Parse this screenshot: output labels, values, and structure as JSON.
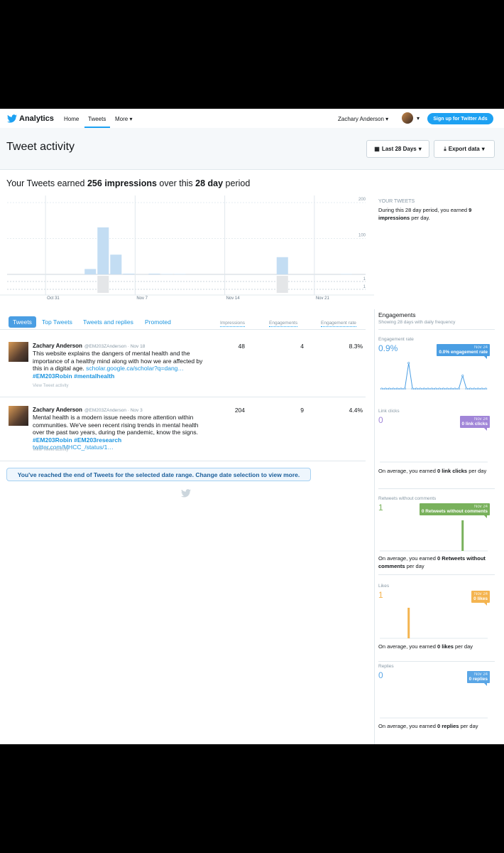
{
  "nav": {
    "brand": "Analytics",
    "links": [
      "Home",
      "Tweets",
      "More"
    ],
    "user": "Zachary Anderson",
    "ads_button": "Sign up for Twitter Ads"
  },
  "header": {
    "title": "Tweet activity",
    "date_button": "Last 28 Days",
    "export_button": "Export data"
  },
  "summary": [
    "Your Tweets earned ",
    "256 impressions",
    " over this ",
    "28 day",
    " period"
  ],
  "chart_data": {
    "type": "bar",
    "categories": [
      null,
      null,
      null,
      "Oct 31",
      null,
      null,
      null,
      null,
      null,
      null,
      "Nov 7",
      null,
      null,
      null,
      null,
      null,
      null,
      "Nov 14",
      null,
      null,
      null,
      null,
      null,
      null,
      "Nov 21",
      null,
      null,
      null
    ],
    "values": [
      0,
      0,
      0,
      0,
      0,
      0,
      15,
      131,
      55,
      2,
      0,
      2,
      1,
      1,
      0,
      0,
      0,
      0,
      0,
      0,
      0,
      48,
      0,
      0,
      0,
      0,
      1,
      0
    ],
    "color": "#c3ddf3",
    "ylim": [
      0,
      210
    ],
    "yticks": [
      100,
      200
    ],
    "grid": true,
    "engagement_values": [
      0,
      0,
      0,
      0,
      0,
      0,
      0,
      1,
      0,
      0,
      0,
      0,
      0,
      0,
      0,
      0,
      0,
      0,
      0,
      0,
      0,
      1,
      0,
      0,
      0,
      0,
      0,
      0
    ],
    "engagement_color": "#e4e6e8",
    "engagement_ylim": [
      0,
      1
    ],
    "engagement_ticks": [
      1,
      1
    ]
  },
  "tabs": [
    "Tweets",
    "Top Tweets",
    "Tweets and replies",
    "Promoted"
  ],
  "columns": [
    "Impressions",
    "Engagements",
    "Engagement rate"
  ],
  "tweets": [
    {
      "name": "Zachary Anderson",
      "meta": "@EM203ZAnderson · Nov 18",
      "text": "This website explains the dangers of mental health and the importance of a healthy mind along with how we are affected by this in a digital age.",
      "links": [
        "scholar.google.ca/scholar?q=dang…",
        "#EM203Robin",
        "#mentalhealth"
      ],
      "view": "View Tweet activity",
      "impressions": 48,
      "engagements": 4,
      "rate": "8.3%"
    },
    {
      "name": "Zachary Anderson",
      "meta": "@EM203ZAnderson · Nov 3",
      "text": "Mental health is a modern issue needs more attention within communities. We've seen recent rising trends in mental health over the past two years, during the pandemic, know the signs.",
      "links": [
        "#EM203Robin",
        "#EM203research",
        "twitter.com/MHCC_/status/1…"
      ],
      "view": "View Tweet activity",
      "impressions": 204,
      "engagements": 9,
      "rate": "4.4%"
    }
  ],
  "end_notice": "You've reached the end of Tweets for the selected date range. Change date selection to view more.",
  "your_tweets": {
    "label": "YOUR TWEETS",
    "text": [
      "During this 28 day period, you earned ",
      "9 impressions",
      " per day."
    ]
  },
  "engagements": {
    "title": "Engagements",
    "subtitle": "Showing 28 days with daily frequency",
    "panels": [
      {
        "label": "Engagement rate",
        "total": "0.9%",
        "tooltip_date": "Nov 24",
        "tooltip": "0.0% engagement rate",
        "color": "#4a9ee3",
        "chart": "line",
        "ylim": [
          0,
          8
        ],
        "values": [
          0,
          0,
          0,
          0,
          0,
          0,
          0,
          6.9,
          0,
          0,
          0,
          0,
          0,
          0,
          0,
          0,
          0,
          0,
          0,
          0,
          0,
          3.5,
          0,
          0,
          0,
          0,
          0,
          0
        ]
      },
      {
        "label": "Link clicks",
        "total": 0,
        "tooltip_date": "Nov 24",
        "tooltip": "0 link clicks",
        "color": "#a186d8",
        "footer": [
          "On average, you earned ",
          "0 link clicks",
          " per day"
        ]
      },
      {
        "label": "Retweets without comments",
        "total": 1,
        "tooltip_date": "Nov 24",
        "tooltip": "0 Retweets without comments",
        "color": "#79b15c",
        "chart": "bar",
        "ylim": [
          0,
          1
        ],
        "values": [
          0,
          0,
          0,
          0,
          0,
          0,
          0,
          0,
          0,
          0,
          0,
          0,
          0,
          0,
          0,
          0,
          0,
          0,
          0,
          0,
          0,
          1,
          0,
          0,
          0,
          0,
          0,
          0
        ],
        "footer": [
          "On average, you earned ",
          "0 Retweets without comments",
          " per day"
        ]
      },
      {
        "label": "Likes",
        "total": 1,
        "tooltip_date": "Nov 24",
        "tooltip": "0 likes",
        "color": "#f4b450",
        "chart": "bar",
        "ylim": [
          0,
          1
        ],
        "values": [
          0,
          0,
          0,
          0,
          0,
          0,
          0,
          1,
          0,
          0,
          0,
          0,
          0,
          0,
          0,
          0,
          0,
          0,
          0,
          0,
          0,
          0,
          0,
          0,
          0,
          0,
          0,
          0
        ],
        "footer": [
          "On average, you earned ",
          "0 likes",
          " per day"
        ]
      },
      {
        "label": "Replies",
        "total": 0,
        "tooltip_date": "Nov 24",
        "tooltip": "0 replies",
        "color": "#5aa6e6",
        "footer": [
          "On average, you earned ",
          "0 replies",
          " per day"
        ]
      }
    ]
  }
}
